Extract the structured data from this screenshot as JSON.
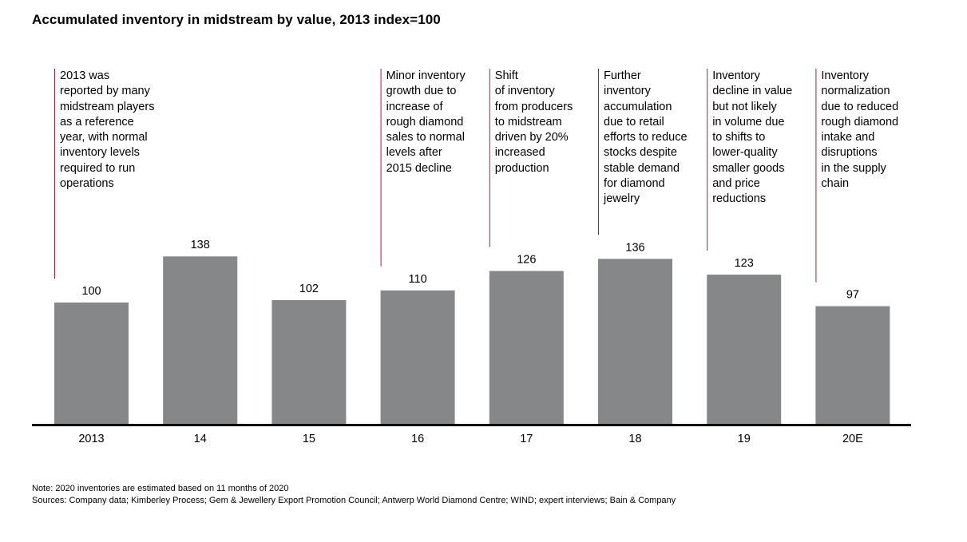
{
  "chart_data": {
    "type": "bar",
    "title": "Accumulated inventory in midstream by value, 2013 index=100",
    "categories": [
      "2013",
      "14",
      "15",
      "16",
      "17",
      "18",
      "19",
      "20E"
    ],
    "values": [
      100,
      138,
      102,
      110,
      126,
      136,
      123,
      97
    ],
    "value_labels": [
      "100",
      "138",
      "102",
      "110",
      "126",
      "136",
      "123",
      "97"
    ],
    "ylim": [
      0,
      200
    ],
    "grid": false,
    "annotations": [
      [
        "2013 was",
        "reported by many",
        "midstream players",
        "as a reference",
        "year, with normal",
        "inventory levels",
        "required to run",
        "operations"
      ],
      [],
      [],
      [
        "Minor inventory",
        "growth due to",
        "increase of",
        "rough diamond",
        "sales to normal",
        "levels after",
        "2015 decline"
      ],
      [
        "Shift",
        "of inventory",
        "from producers",
        "to midstream",
        "driven by 20%",
        "increased",
        "production"
      ],
      [
        "Further",
        "inventory",
        "accumulation",
        "due to retail",
        "efforts to reduce",
        "stocks despite",
        "stable demand",
        "for diamond",
        "jewelry"
      ],
      [
        "Inventory",
        "decline in value",
        "but not likely",
        "in volume due",
        "to shifts to",
        "lower-quality",
        "smaller goods",
        "and price",
        "reductions"
      ],
      [
        "Inventory",
        "normalization",
        "due to reduced",
        "rough diamond",
        "intake and",
        "disruptions",
        "in the supply",
        "chain"
      ]
    ],
    "colors": {
      "bar": "#858788",
      "annotation_line": "#a41f35",
      "axis": "#000000"
    }
  },
  "notes": {
    "note": "Note: 2020 inventories are estimated based on 11 months of 2020",
    "sources": "Sources: Company data; Kimberley Process; Gem & Jewellery Export Promotion Council;  Antwerp World Diamond Centre; WIND; expert interviews; Bain & Company"
  }
}
